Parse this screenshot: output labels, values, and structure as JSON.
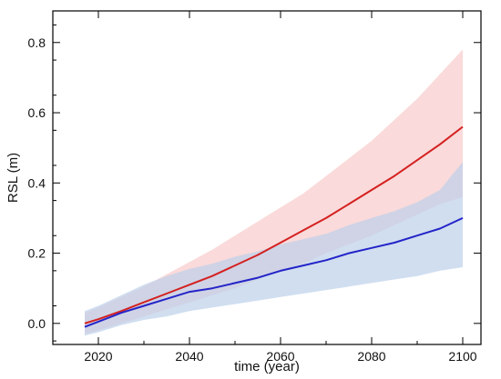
{
  "chart_data": {
    "type": "line",
    "title": "",
    "xlabel": "time (year)",
    "ylabel": "RSL (m)",
    "xlim": [
      2010,
      2104
    ],
    "ylim": [
      -0.06,
      0.89
    ],
    "xticks": [
      2020,
      2040,
      2060,
      2080,
      2100
    ],
    "yticks": [
      0.0,
      0.2,
      0.4,
      0.6,
      0.8
    ],
    "xtick_labels": [
      "2020",
      "2040",
      "2060",
      "2080",
      "2100"
    ],
    "ytick_labels": [
      "0.0",
      "0.2",
      "0.4",
      "0.6",
      "0.8"
    ],
    "grid": false,
    "legend": "none",
    "series": [
      {
        "color": "#d42020",
        "band_color": "#f9d3d3",
        "x": [
          2017,
          2020,
          2025,
          2030,
          2035,
          2040,
          2045,
          2050,
          2055,
          2060,
          2065,
          2070,
          2075,
          2080,
          2085,
          2090,
          2095,
          2100
        ],
        "y": [
          0.0,
          0.012,
          0.035,
          0.06,
          0.085,
          0.11,
          0.135,
          0.165,
          0.195,
          0.23,
          0.265,
          0.3,
          0.34,
          0.38,
          0.42,
          0.465,
          0.51,
          0.56
        ],
        "lower": [
          -0.03,
          -0.02,
          0.0,
          0.02,
          0.04,
          0.06,
          0.08,
          0.1,
          0.125,
          0.15,
          0.17,
          0.2,
          0.225,
          0.25,
          0.28,
          0.31,
          0.34,
          0.36
        ],
        "upper": [
          0.03,
          0.045,
          0.075,
          0.105,
          0.14,
          0.175,
          0.21,
          0.25,
          0.29,
          0.33,
          0.37,
          0.42,
          0.47,
          0.52,
          0.58,
          0.64,
          0.71,
          0.78
        ]
      },
      {
        "color": "#2424c8",
        "band_color": "#bcd0ea",
        "x": [
          2017,
          2020,
          2025,
          2030,
          2035,
          2040,
          2045,
          2050,
          2055,
          2060,
          2065,
          2070,
          2075,
          2080,
          2085,
          2090,
          2095,
          2100
        ],
        "y": [
          -0.01,
          0.005,
          0.03,
          0.05,
          0.07,
          0.09,
          0.1,
          0.115,
          0.13,
          0.15,
          0.165,
          0.18,
          0.2,
          0.215,
          0.23,
          0.25,
          0.27,
          0.3
        ],
        "lower": [
          -0.035,
          -0.025,
          -0.005,
          0.01,
          0.02,
          0.035,
          0.045,
          0.055,
          0.065,
          0.075,
          0.085,
          0.095,
          0.105,
          0.115,
          0.125,
          0.135,
          0.15,
          0.16
        ],
        "upper": [
          0.035,
          0.05,
          0.08,
          0.11,
          0.135,
          0.155,
          0.17,
          0.19,
          0.205,
          0.225,
          0.24,
          0.255,
          0.28,
          0.3,
          0.32,
          0.345,
          0.38,
          0.46
        ]
      }
    ]
  }
}
